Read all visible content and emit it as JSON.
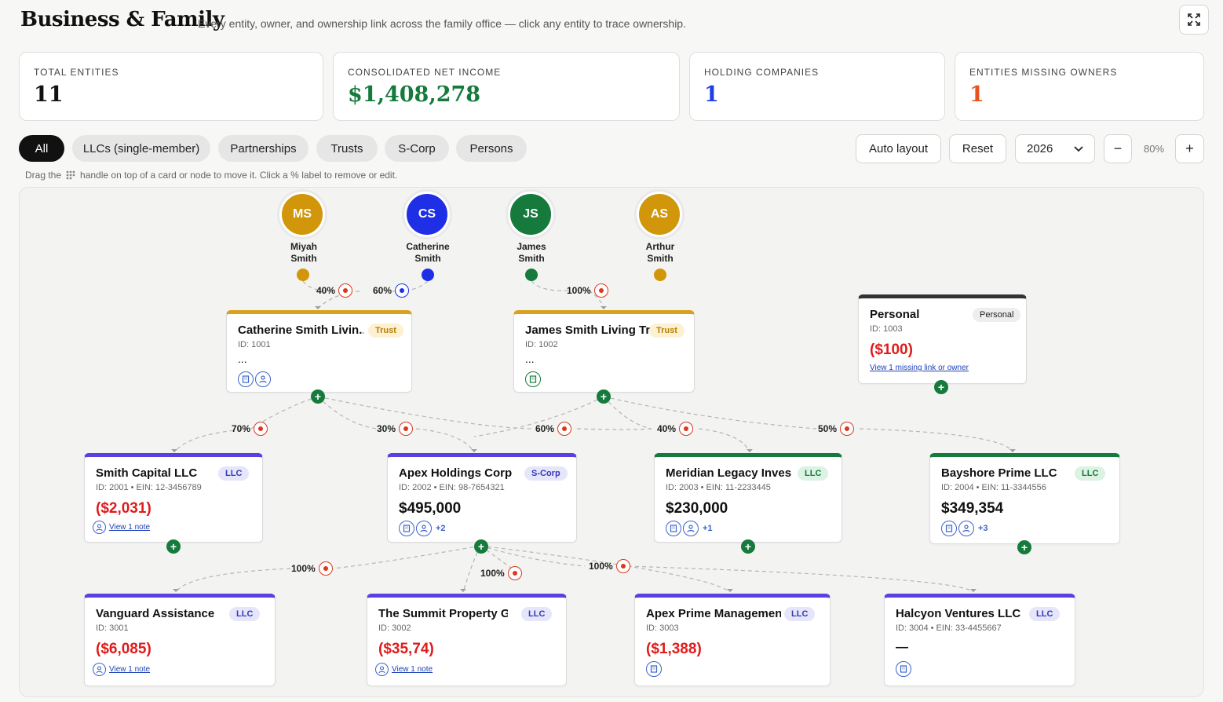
{
  "header": {
    "title": "Business & Family",
    "subtitle": "Every entity, owner, and ownership link across the family office — click any entity to trace ownership.",
    "expand_icon": "expand-icon"
  },
  "stats": [
    {
      "label": "TOTAL ENTITIES",
      "value": "11",
      "color": "#111111"
    },
    {
      "label": "CONSOLIDATED NET INCOME",
      "value": "$1,408,278",
      "color": "#157a3c"
    },
    {
      "label": "HOLDING COMPANIES",
      "value": "1",
      "color": "#1f3ce6"
    },
    {
      "label": "ENTITIES MISSING OWNERS",
      "value": "1",
      "color": "#e8521c"
    }
  ],
  "filters": [
    "All",
    "LLCs (single-member)",
    "Partnerships",
    "Trusts",
    "S-Corp",
    "Persons"
  ],
  "active_filter": "All",
  "toolbar": {
    "auto_layout": "Auto layout",
    "reset": "Reset",
    "year": "2026",
    "zoom_out": "−",
    "zoom": "80%",
    "zoom_in": "+"
  },
  "hint": {
    "before": "Drag the",
    "after": "handle on top of a card or node to move it. Click a % label to remove or edit."
  },
  "persons": [
    {
      "initials": "MS",
      "first": "Miyah",
      "last": "Smith",
      "color": "#d1960a"
    },
    {
      "initials": "CS",
      "first": "Catherine",
      "last": "Smith",
      "color": "#1f2fe6"
    },
    {
      "initials": "JS",
      "first": "James",
      "last": "Smith",
      "color": "#157a3c"
    },
    {
      "initials": "AS",
      "first": "Arthur",
      "last": "Smith",
      "color": "#d1960a"
    }
  ],
  "trusts": [
    {
      "name": "Catherine Smith Livin...",
      "badge": "Trust",
      "id": "ID: 1001",
      "value": "..."
    },
    {
      "name": "James Smith Living Tr...",
      "badge": "Trust",
      "id": "ID: 1002",
      "value": "..."
    }
  ],
  "personal": {
    "name": "Personal",
    "badge": "Personal",
    "id": "ID: 1003",
    "amount": "($100)",
    "link": "View 1 missing link or owner"
  },
  "level2": [
    {
      "name": "Smith Capital LLC",
      "badge": "LLC",
      "id": "ID: 2001 • EIN: 12-3456789",
      "amount": "($2,031)",
      "link": "View 1 note"
    },
    {
      "name": "Apex Holdings Corp",
      "badge": "S-Corp",
      "id": "ID: 2002 • EIN: 98-7654321",
      "amount": "$495,000",
      "more": "+2"
    },
    {
      "name": "Meridian Legacy Inves...",
      "badge": "LLC",
      "id": "ID: 2003 • EIN: 11-2233445",
      "amount": "$230,000",
      "more": "+1"
    },
    {
      "name": "Bayshore Prime LLC",
      "badge": "LLC",
      "id": "ID: 2004 • EIN: 11-3344556",
      "amount": "$349,354",
      "more": "+3"
    }
  ],
  "level3": [
    {
      "name": "Vanguard Assistance ...",
      "badge": "LLC",
      "id": "ID: 3001",
      "amount": "($6,085)",
      "link": "View 1 note"
    },
    {
      "name": "The Summit Property G...",
      "badge": "LLC",
      "id": "ID: 3002",
      "amount": "($35,74)",
      "link": "View 1 note"
    },
    {
      "name": "Apex Prime Management...",
      "badge": "LLC",
      "id": "ID: 3003",
      "amount": "($1,388)"
    },
    {
      "name": "Halcyon Ventures LLC",
      "badge": "LLC",
      "id": "ID: 3004 • EIN: 33-4455667",
      "amount": "—"
    }
  ],
  "percents": {
    "p1": "40%",
    "p2": "60%",
    "p3": "100%",
    "p4": "70%",
    "p5": "30%",
    "p6": "60%",
    "p7": "40%",
    "p8": "50%",
    "p9": "100%",
    "p10": "100%",
    "p11": "100%"
  },
  "colors": {
    "trust_accent": "#d8a21e",
    "llc_accent": "#5b3fe0",
    "green_accent": "#157a3c",
    "personal_accent": "#333333",
    "negative": "#e01b1b",
    "positive": "#111111"
  }
}
